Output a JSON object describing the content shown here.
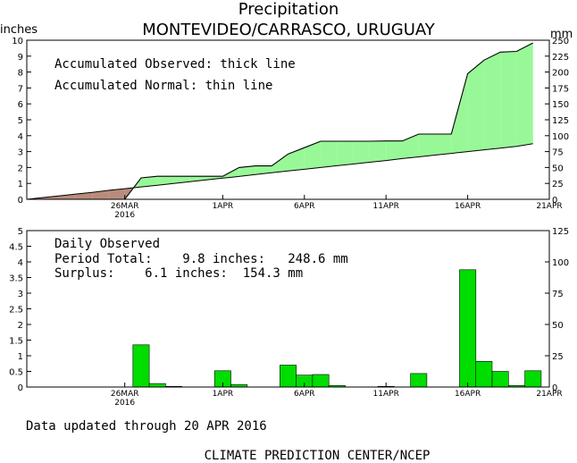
{
  "title": "Precipitation",
  "subtitle": "MONTEVIDEO/CARRASCO, URUGUAY",
  "unit_left": "inches",
  "unit_right": "mm",
  "updated": "Data updated through 20 APR 2016",
  "footer": "CLIMATE PREDICTION CENTER/NCEP",
  "colors": {
    "surplus": "#98f898",
    "deficit": "#b88c7c",
    "bars": "#00dd00"
  },
  "chart_data": [
    {
      "type": "area",
      "legend": [
        "Accumulated Observed: thick line",
        "Accumulated Normal: thin line"
      ],
      "x_dates": [
        "2016-03-20",
        "2016-03-21",
        "2016-03-22",
        "2016-03-23",
        "2016-03-24",
        "2016-03-25",
        "2016-03-26",
        "2016-03-27",
        "2016-03-28",
        "2016-03-29",
        "2016-03-30",
        "2016-03-31",
        "2016-04-01",
        "2016-04-02",
        "2016-04-03",
        "2016-04-04",
        "2016-04-05",
        "2016-04-06",
        "2016-04-07",
        "2016-04-08",
        "2016-04-09",
        "2016-04-10",
        "2016-04-11",
        "2016-04-12",
        "2016-04-13",
        "2016-04-14",
        "2016-04-15",
        "2016-04-16",
        "2016-04-17",
        "2016-04-18",
        "2016-04-19",
        "2016-04-20"
      ],
      "series": [
        {
          "name": "Accumulated Observed",
          "values": [
            0,
            0,
            0,
            0,
            0,
            0,
            0,
            1.35,
            1.45,
            1.45,
            1.45,
            1.45,
            1.45,
            2.0,
            2.1,
            2.1,
            2.85,
            3.25,
            3.65,
            3.65,
            3.65,
            3.65,
            3.67,
            3.67,
            4.1,
            4.1,
            4.1,
            7.9,
            8.75,
            9.25,
            9.3,
            9.83
          ]
        },
        {
          "name": "Accumulated Normal",
          "values": [
            0,
            0.11,
            0.22,
            0.33,
            0.44,
            0.56,
            0.67,
            0.78,
            0.89,
            1.0,
            1.11,
            1.22,
            1.33,
            1.44,
            1.56,
            1.67,
            1.78,
            1.89,
            2.0,
            2.11,
            2.22,
            2.33,
            2.44,
            2.56,
            2.67,
            2.78,
            2.89,
            3.0,
            3.11,
            3.22,
            3.33,
            3.5
          ]
        }
      ],
      "x_tick_labels": [
        "26MAR",
        "1APR",
        "6APR",
        "11APR",
        "16APR",
        "21APR"
      ],
      "x_year_label": "2016",
      "ylim_in": [
        0,
        10
      ],
      "yticks_in": [
        "0",
        "1",
        "2",
        "3",
        "4",
        "5",
        "6",
        "7",
        "8",
        "9",
        "10"
      ],
      "ylim_mm": [
        0,
        250
      ],
      "yticks_mm": [
        "0",
        "25",
        "50",
        "75",
        "100",
        "125",
        "150",
        "175",
        "200",
        "225",
        "250"
      ]
    },
    {
      "type": "bar",
      "title": "Daily Observed",
      "period_total": "Period Total:    9.8 inches:   248.6 mm",
      "surplus": "Surplus:    6.1 inches:  154.3 mm",
      "x_dates": [
        "2016-03-27",
        "2016-03-28",
        "2016-03-29",
        "2016-04-01",
        "2016-04-02",
        "2016-04-05",
        "2016-04-06",
        "2016-04-07",
        "2016-04-08",
        "2016-04-11",
        "2016-04-13",
        "2016-04-16",
        "2016-04-17",
        "2016-04-18",
        "2016-04-19",
        "2016-04-20"
      ],
      "values": [
        1.35,
        0.11,
        0.02,
        0.52,
        0.08,
        0.7,
        0.38,
        0.4,
        0.05,
        0.02,
        0.43,
        3.75,
        0.82,
        0.5,
        0.05,
        0.52
      ],
      "x_tick_labels": [
        "26MAR",
        "1APR",
        "6APR",
        "11APR",
        "16APR",
        "21APR"
      ],
      "x_year_label": "2016",
      "ylim_in": [
        0,
        5
      ],
      "yticks_in": [
        "0",
        "0.5",
        "1",
        "1.5",
        "2",
        "2.5",
        "3",
        "3.5",
        "4",
        "4.5",
        "5"
      ],
      "ylim_mm": [
        0,
        125
      ],
      "yticks_mm": [
        "0",
        "25",
        "50",
        "75",
        "100",
        "125"
      ]
    }
  ]
}
